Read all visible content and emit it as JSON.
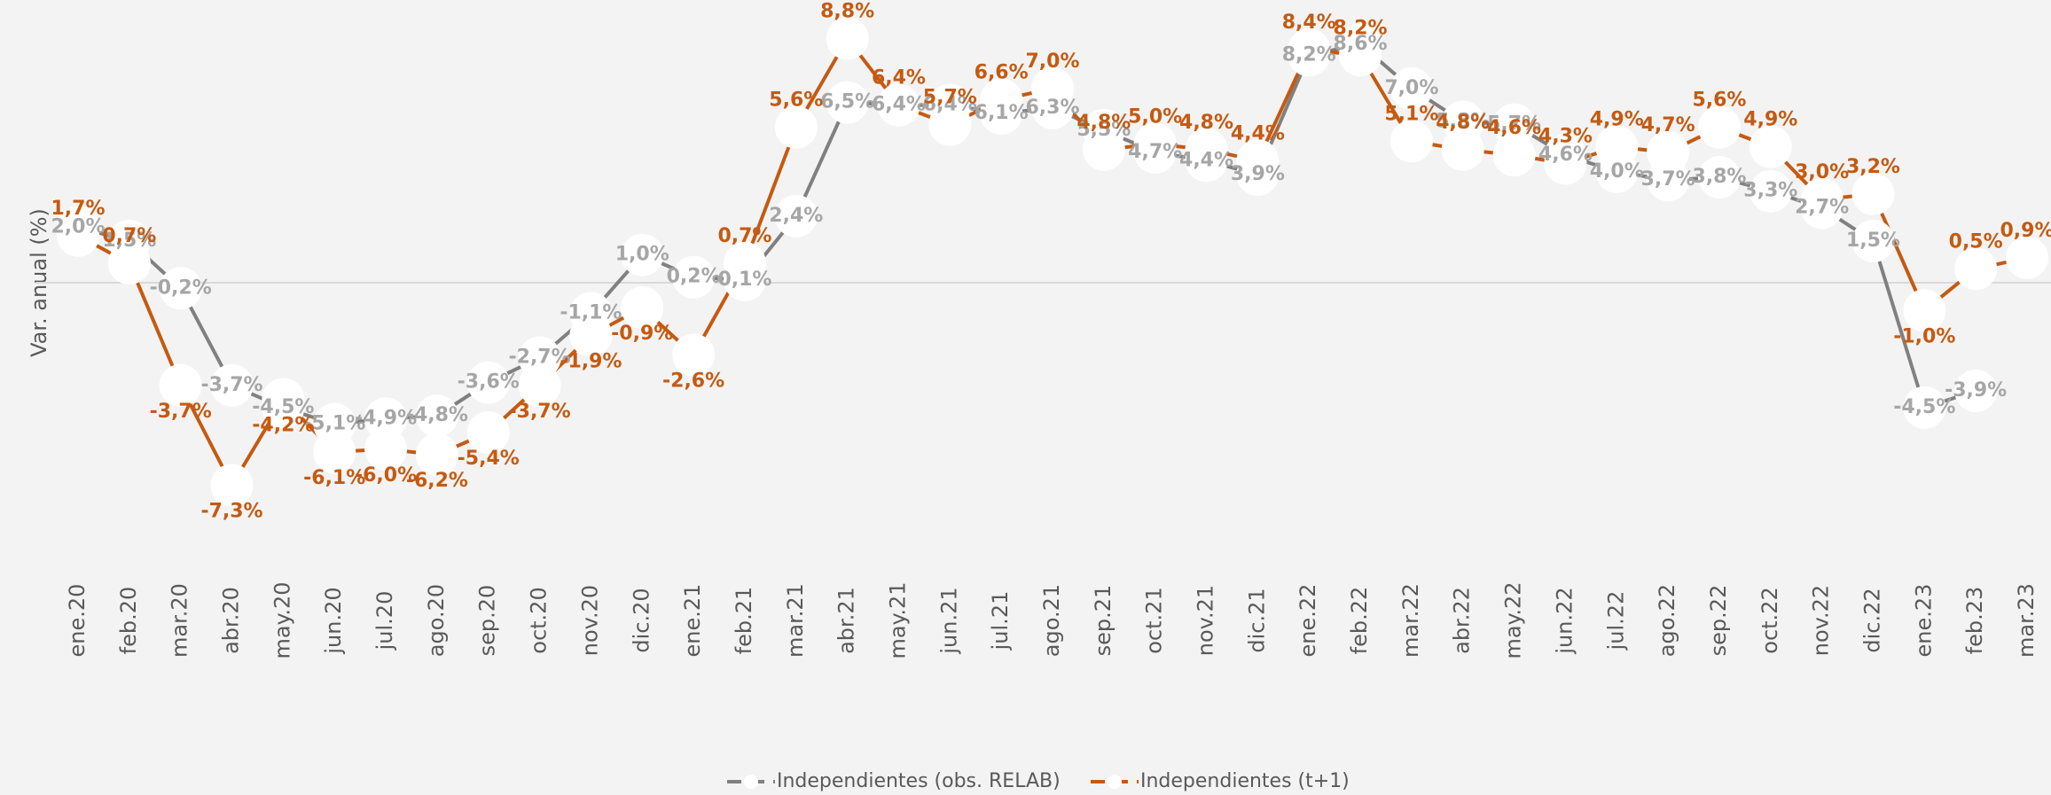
{
  "chart_data": {
    "type": "line",
    "y_axis_label": "Var. anual (%)",
    "categories": [
      "ene.20",
      "feb.20",
      "mar.20",
      "abr.20",
      "may.20",
      "jun.20",
      "jul.20",
      "ago.20",
      "sep.20",
      "oct.20",
      "nov.20",
      "dic.20",
      "ene.21",
      "feb.21",
      "mar.21",
      "abr.21",
      "may.21",
      "jun.21",
      "jul.21",
      "ago.21",
      "sep.21",
      "oct.21",
      "nov.21",
      "dic.21",
      "ene.22",
      "feb.22",
      "mar.22",
      "abr.22",
      "may.22",
      "jun.22",
      "jul.22",
      "ago.22",
      "sep.22",
      "oct.22",
      "nov.22",
      "dic.22",
      "ene.23",
      "feb.23",
      "mar.23"
    ],
    "ylim": [
      -10,
      10
    ],
    "series": [
      {
        "name": "Independientes (obs. RELAB)",
        "color": "#808080",
        "values": [
          2.0,
          1.5,
          -0.2,
          -3.7,
          -4.5,
          -5.1,
          -4.9,
          -4.8,
          -3.6,
          -2.7,
          -1.1,
          1.0,
          0.2,
          0.1,
          2.4,
          6.5,
          6.4,
          6.4,
          6.1,
          6.3,
          5.5,
          4.7,
          4.4,
          3.9,
          8.2,
          8.6,
          7.0,
          5.8,
          5.7,
          4.6,
          4.0,
          3.7,
          3.8,
          3.3,
          2.7,
          1.5,
          -4.5,
          -3.9,
          null
        ],
        "value_labels": [
          "2,0%",
          "1,5%",
          "-0,2%",
          "-3,7%",
          "-4,5%",
          "-5,1%",
          "-4,9%",
          "-4,8%",
          "-3,6%",
          "-2,7%",
          "-1,1%",
          "1,0%",
          "0,2%",
          "0,1%",
          "2,4%",
          "6,5%",
          "6,4%",
          "6,4%",
          "6,1%",
          "6,3%",
          "5,5%",
          "4,7%",
          "4,4%",
          "3,9%",
          "8,2%",
          "8,6%",
          "7,0%",
          "5,8%",
          "5,7%",
          "4,6%",
          "4,0%",
          "3,7%",
          "3,8%",
          "3,3%",
          "2,7%",
          "1,5%",
          "-4,5%",
          "-3,9%",
          null
        ]
      },
      {
        "name": "Independientes (t+1)",
        "color": "#c55a11",
        "values": [
          1.7,
          0.7,
          -3.7,
          -7.3,
          -4.2,
          -6.1,
          -6.0,
          -6.2,
          -5.4,
          -3.7,
          -1.9,
          -0.9,
          -2.6,
          0.7,
          5.6,
          8.8,
          6.4,
          5.7,
          6.6,
          7.0,
          4.8,
          5.0,
          4.8,
          4.4,
          8.4,
          8.2,
          5.1,
          4.8,
          4.6,
          4.3,
          4.9,
          4.7,
          5.6,
          4.9,
          3.0,
          3.2,
          -1.0,
          0.5,
          0.9
        ],
        "value_labels": [
          "1,7%",
          "0,7%",
          "-3,7%",
          "-7,3%",
          "-4,2%",
          "-6,1%",
          "-6,0%",
          "-6,2%",
          "-5,4%",
          "-3,7%",
          "-1,9%",
          "-0,9%",
          "-2,6%",
          "0,7%",
          "5,6%",
          "8,8%",
          "6,4%",
          "5,7%",
          "6,6%",
          "7,0%",
          "4,8%",
          "5,0%",
          "4,8%",
          "4,4%",
          "8,4%",
          "8,2%",
          "5,1%",
          "4,8%",
          "4,6%",
          "4,3%",
          "4,9%",
          "4,7%",
          "5,6%",
          "4,9%",
          "3,0%",
          "3,2%",
          "-1,0%",
          "0,5%",
          "0,9%"
        ]
      }
    ]
  }
}
